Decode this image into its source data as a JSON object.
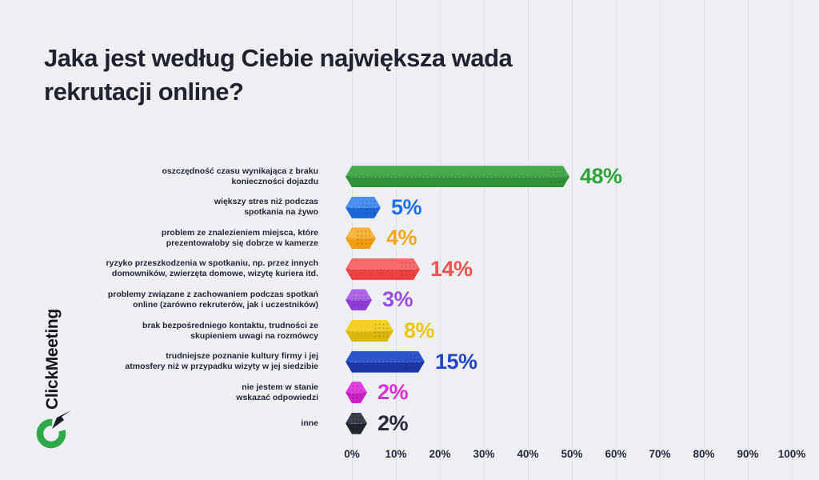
{
  "page": {
    "background": "#edeff3",
    "grid_color": "#dfe2ea",
    "heading_color": "#20232e"
  },
  "brand": {
    "name": "ClickMeeting",
    "logo_green": "#2fa84a",
    "logo_arrow_color": "#1b1e28"
  },
  "chart_data": {
    "type": "bar",
    "orientation": "horizontal",
    "title": "Jaka jest według Ciebie największa wada rekrutacji online?",
    "xlabel": "",
    "ylabel": "",
    "xlim": [
      0,
      100
    ],
    "grid": true,
    "xticks": [
      "0%",
      "10%",
      "20%",
      "30%",
      "40%",
      "50%",
      "60%",
      "70%",
      "80%",
      "90%",
      "100%"
    ],
    "series": [
      {
        "label": "oszczędność czasu wynikająca z braku\nkonieczności dojazdu",
        "value": 48,
        "value_label": "48%",
        "color_light": "#47ab4d",
        "color_dark": "#2f9138",
        "text_color": "#31a13e"
      },
      {
        "label": "większy stres niż podczas\nspotkania na żywo",
        "value": 5,
        "value_label": "5%",
        "color_light": "#4a90f0",
        "color_dark": "#1c66d6",
        "text_color": "#1b72e8"
      },
      {
        "label": "problem ze znalezieniem miejsca, które\nprezentowałoby się dobrze w kamerze",
        "value": 4,
        "value_label": "4%",
        "color_light": "#f9b43f",
        "color_dark": "#f09c14",
        "text_color": "#f6a51f"
      },
      {
        "label": "ryzyko przeszkodzenia w spotkaniu, np. przez innych\ndomowników, zwierzęta domowe, wizytę kuriera itd.",
        "value": 14,
        "value_label": "14%",
        "color_light": "#f96b6b",
        "color_dark": "#ee4040",
        "text_color": "#f15151"
      },
      {
        "label": "problemy związane z zachowaniem podczas spotkań\nonline (zarówno rekruterów, jak i uczestników)",
        "value": 3,
        "value_label": "3%",
        "color_light": "#b066e8",
        "color_dark": "#8e3ed6",
        "text_color": "#9b4fe0"
      },
      {
        "label": "brak bezpośredniego kontaktu, trudności ze\nskupieniem uwagi na rozmówcy",
        "value": 8,
        "value_label": "8%",
        "color_light": "#f2d028",
        "color_dark": "#dcb70b",
        "text_color": "#eac512"
      },
      {
        "label": "trudniejsze poznanie kultury firmy i jej\natmosfery niż w przypadku wizyty w jej siedzibie",
        "value": 15,
        "value_label": "15%",
        "color_light": "#2e55cc",
        "color_dark": "#1b38a6",
        "text_color": "#2547c6"
      },
      {
        "label": "nie jestem w stanie\nwskazać odpowiedzi",
        "value": 2,
        "value_label": "2%",
        "color_light": "#e43fe2",
        "color_dark": "#c922c6",
        "text_color": "#d831d3"
      },
      {
        "label": "inne",
        "value": 2,
        "value_label": "2%",
        "color_light": "#3c3f4d",
        "color_dark": "#22242e",
        "text_color": "#282b37"
      }
    ]
  }
}
